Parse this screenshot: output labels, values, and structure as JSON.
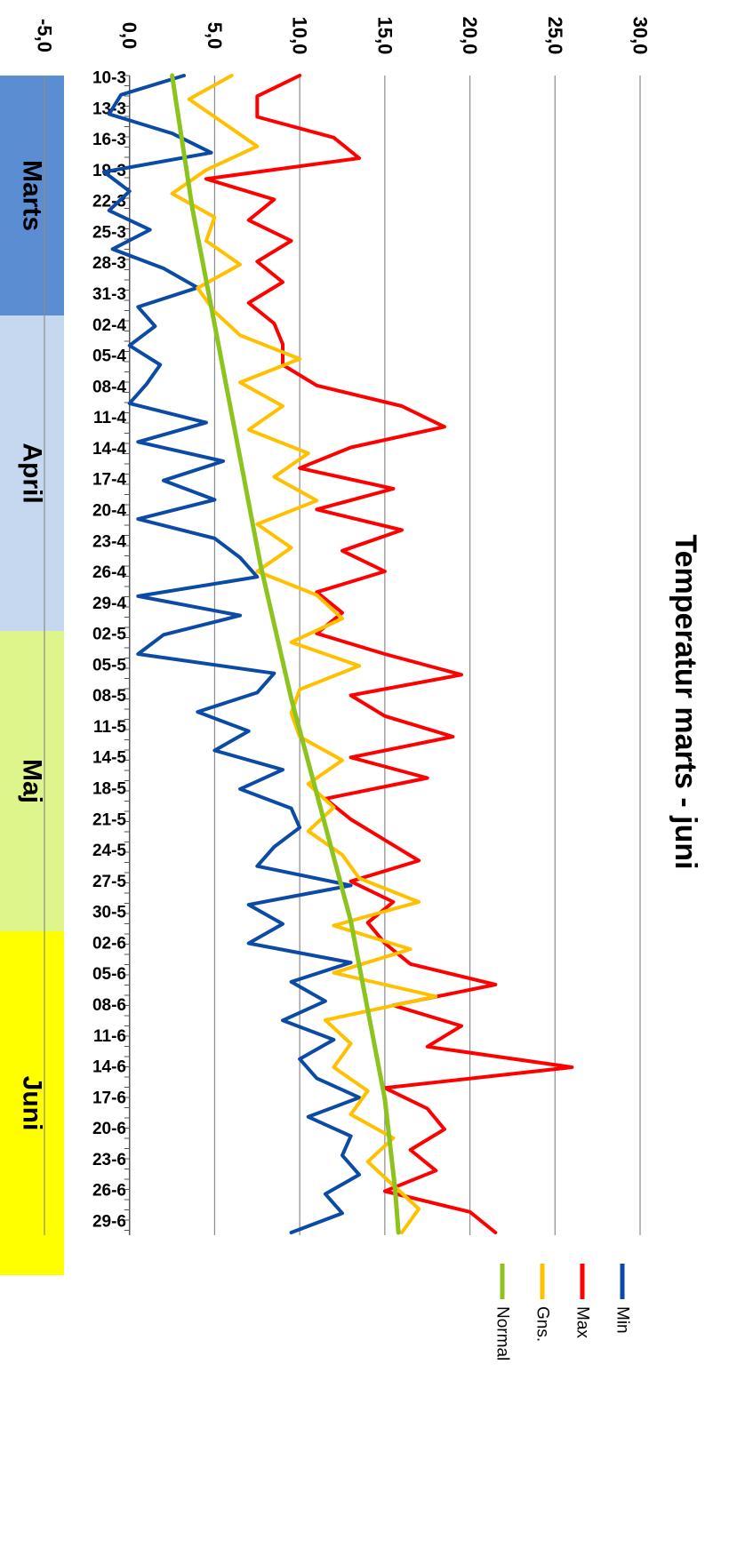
{
  "chart_data": {
    "type": "line",
    "title": "Temperatur marts - juni",
    "orientation": "rotated-90-clockwise",
    "x_tick_labels": [
      "10-3",
      "13-3",
      "16-3",
      "19-3",
      "22-3",
      "25-3",
      "28-3",
      "31-3",
      "02-4",
      "05-4",
      "08-4",
      "11-4",
      "14-4",
      "17-4",
      "20-4",
      "23-4",
      "26-4",
      "29-4",
      "02-5",
      "05-5",
      "08-5",
      "11-5",
      "14-5",
      "18-5",
      "21-5",
      "24-5",
      "27-5",
      "30-5",
      "02-6",
      "05-6",
      "08-6",
      "11-6",
      "14-6",
      "17-6",
      "20-6",
      "23-6",
      "26-6",
      "29-6"
    ],
    "y_tick_labels": [
      "-5,0",
      "0,0",
      "5,0",
      "10,0",
      "15,0",
      "20,0",
      "25,0",
      "30,0"
    ],
    "ylim": [
      -5,
      30
    ],
    "grid": true,
    "legend_position": "bottom",
    "month_bands": [
      {
        "label": "Marts",
        "color": "#5B8DD3"
      },
      {
        "label": "April",
        "color": "#C5D8F0"
      },
      {
        "label": "Maj",
        "color": "#DDF58A"
      },
      {
        "label": "Juni",
        "color": "#FFFF00"
      }
    ],
    "series": [
      {
        "name": "Min",
        "color": "#0B4AA5",
        "values": [
          3.2,
          -0.5,
          -1.2,
          2.5,
          4.8,
          -1.5,
          0.0,
          -1.2,
          1.2,
          -1.0,
          2.0,
          4.0,
          0.5,
          1.5,
          0.0,
          1.8,
          1.0,
          0.0,
          4.5,
          0.5,
          5.5,
          2.0,
          5.0,
          0.5,
          5.0,
          6.5,
          7.5,
          0.5,
          6.5,
          2.0,
          0.5,
          8.5,
          7.5,
          4.0,
          7.0,
          5.0,
          9.0,
          6.5,
          9.5,
          10.0,
          8.5,
          7.5,
          13.0,
          7.0,
          9.0,
          7.0,
          13.0,
          9.5,
          11.5,
          9.0,
          12.0,
          10.0,
          11.0,
          13.5,
          10.5,
          13.0,
          12.5,
          13.5,
          11.5,
          12.5,
          9.5
        ]
      },
      {
        "name": "Max",
        "color": "#FF0000",
        "values": [
          10.0,
          7.5,
          7.5,
          12.0,
          13.5,
          4.5,
          8.5,
          7.0,
          9.5,
          7.5,
          9.0,
          7.0,
          8.5,
          9.0,
          9.0,
          11.0,
          16.0,
          18.5,
          13.0,
          10.0,
          15.5,
          11.0,
          16.0,
          12.5,
          15.0,
          11.0,
          12.5,
          11.0,
          15.0,
          19.5,
          13.0,
          15.0,
          19.0,
          13.0,
          17.5,
          11.5,
          13.0,
          15.0,
          17.0,
          13.0,
          15.5,
          14.0,
          15.0,
          16.5,
          21.5,
          15.5,
          19.5,
          17.5,
          26.0,
          15.0,
          17.5,
          18.5,
          16.5,
          18.0,
          15.0,
          20.0,
          21.5
        ]
      },
      {
        "name": "Gns.",
        "color": "#FFC000",
        "values": [
          6.0,
          3.5,
          5.5,
          7.5,
          4.5,
          2.5,
          5.0,
          4.5,
          6.5,
          4.0,
          5.0,
          6.5,
          10.0,
          6.5,
          9.0,
          7.0,
          10.5,
          8.5,
          11.0,
          7.5,
          9.5,
          7.5,
          11.0,
          12.5,
          9.5,
          13.5,
          10.0,
          9.5,
          10.0,
          12.5,
          10.5,
          12.0,
          10.5,
          12.5,
          13.5,
          17.0,
          12.0,
          16.5,
          12.0,
          18.0,
          11.5,
          13.0,
          12.0,
          14.0,
          13.0,
          15.5,
          14.0,
          15.5,
          17.0,
          16.0
        ]
      },
      {
        "name": "Normal",
        "color": "#8CC31E",
        "values": [
          2.5,
          2.9,
          3.3,
          3.7,
          4.2,
          4.7,
          5.2,
          5.7,
          6.2,
          6.7,
          7.2,
          7.7,
          8.3,
          8.9,
          9.5,
          10.2,
          10.9,
          11.6,
          12.3,
          13.0,
          13.5,
          14.0,
          14.5,
          15.0,
          15.3,
          15.6,
          15.8
        ]
      }
    ]
  }
}
